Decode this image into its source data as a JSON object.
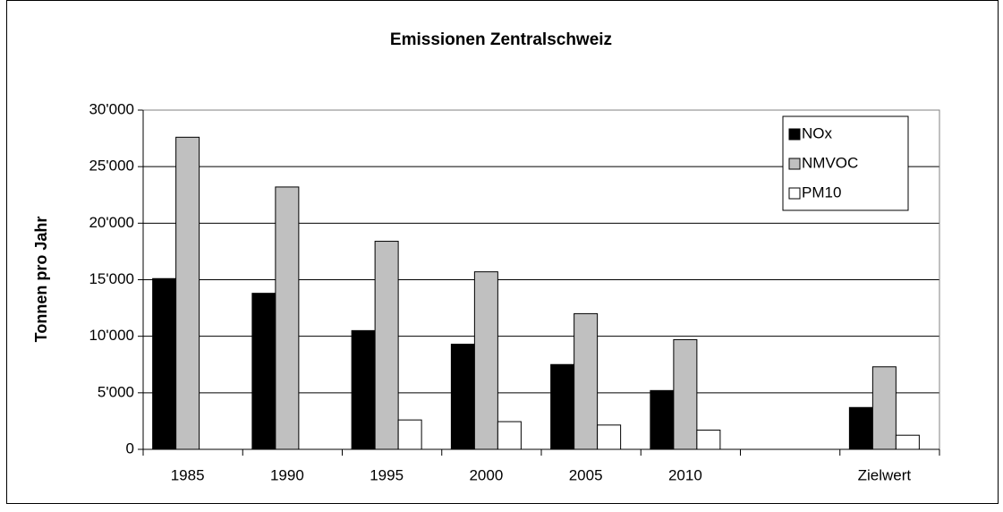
{
  "chart_data": {
    "type": "bar",
    "title": "Emissionen Zentralschweiz",
    "y_label": "Tonnen pro Jahr",
    "categories": [
      "1985",
      "1990",
      "1995",
      "2000",
      "2005",
      "2010",
      null,
      "Zielwert"
    ],
    "series": [
      {
        "name": "NOx",
        "color": "#000000",
        "values": [
          15100,
          13800,
          10500,
          9300,
          7500,
          5200,
          null,
          3700
        ]
      },
      {
        "name": "NMVOC",
        "color": "#c0c0c0",
        "values": [
          27600,
          23200,
          18400,
          15700,
          12000,
          9700,
          null,
          7300
        ]
      },
      {
        "name": "PM10",
        "color": "#ffffff",
        "values": [
          null,
          null,
          2600,
          2450,
          2150,
          1700,
          null,
          1250
        ]
      }
    ],
    "ylim": [
      0,
      30000
    ],
    "yticks": [
      0,
      {
        "value": 5000,
        "label": "5'000"
      },
      {
        "value": 10000,
        "label": "10'000"
      },
      {
        "value": 15000,
        "label": "15'000"
      },
      {
        "value": 20000,
        "label": "20'000"
      },
      {
        "value": 25000,
        "label": "25'000"
      },
      {
        "value": 30000,
        "label": "30'000"
      }
    ],
    "grid": true,
    "legend": "upper right"
  }
}
